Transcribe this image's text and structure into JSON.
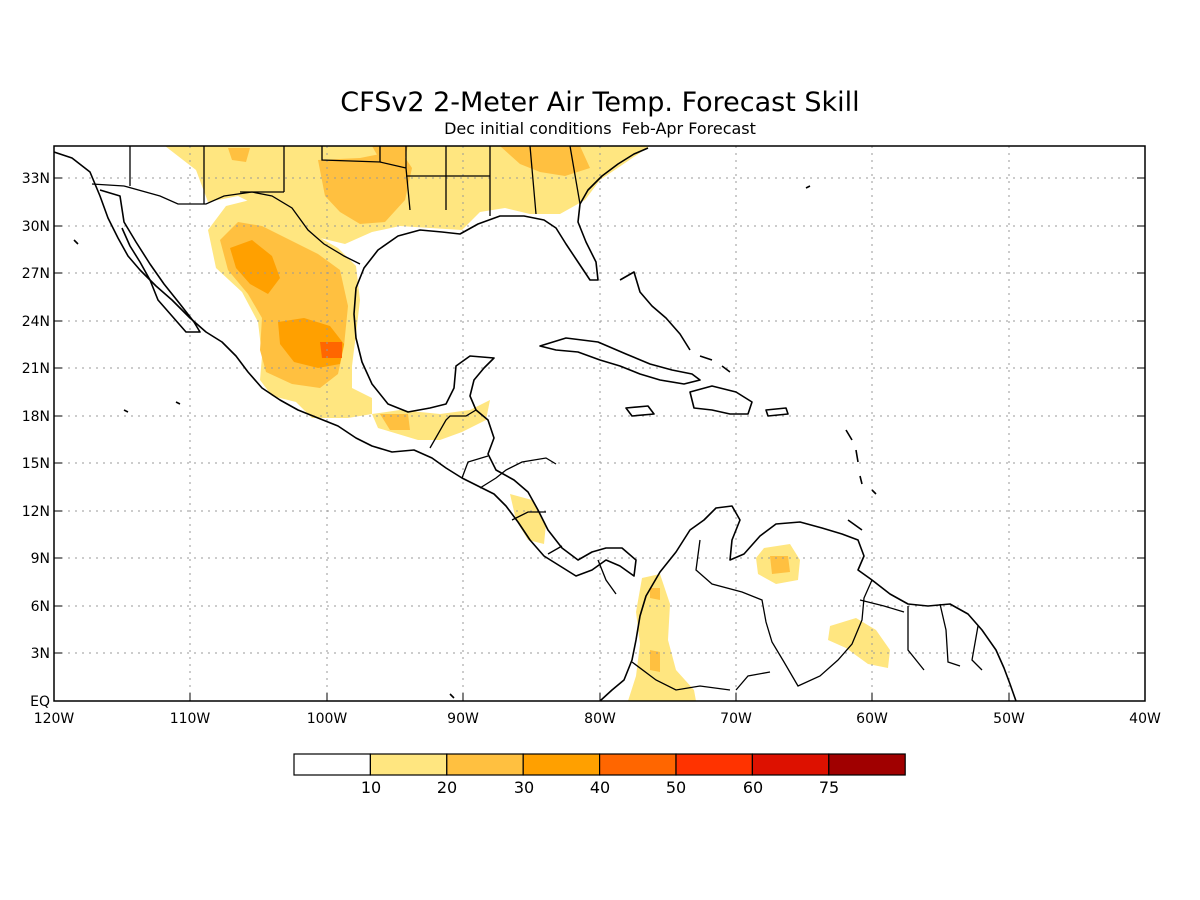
{
  "title": "CFSv2 2-Meter Air Temp. Forecast Skill",
  "subtitle": "Dec initial conditions  Feb-Apr Forecast",
  "lat_labels": [
    "33N",
    "30N",
    "27N",
    "24N",
    "21N",
    "18N",
    "15N",
    "12N",
    "9N",
    "6N",
    "3N",
    "EQ"
  ],
  "lon_labels": [
    "120W",
    "110W",
    "100W",
    "90W",
    "80W",
    "70W",
    "60W",
    "50W",
    "40W"
  ],
  "colorbar": {
    "thresholds": [
      "10",
      "20",
      "30",
      "40",
      "50",
      "60",
      "75"
    ],
    "colors": [
      "#ffffff",
      "#ffe680",
      "#ffc040",
      "#ffa000",
      "#ff6600",
      "#ff3300",
      "#dd1100",
      "#a00000"
    ]
  },
  "colors": {
    "skill_low": "#ffe680",
    "skill_mid": "#ffc040",
    "skill_high": "#ffa000",
    "skill_peak": "#ff6600"
  }
}
